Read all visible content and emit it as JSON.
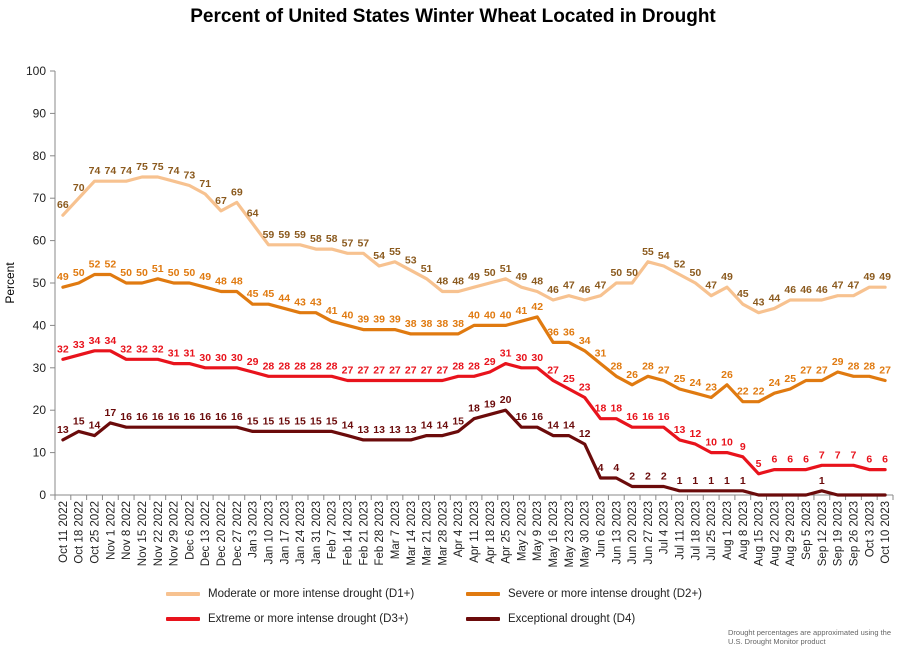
{
  "chart_data": {
    "type": "line",
    "title": "Percent of United States Winter Wheat Located in Drought",
    "xlabel": "",
    "ylabel": "Percent",
    "ylim": [
      0,
      100
    ],
    "yticks": [
      0,
      10,
      20,
      30,
      40,
      50,
      60,
      70,
      80,
      90,
      100
    ],
    "grid": false,
    "legend_position": "bottom",
    "categories": [
      "Oct 11 2022",
      "Oct 18 2022",
      "Oct 25 2022",
      "Nov 1 2022",
      "Nov 8 2022",
      "Nov 15 2022",
      "Nov 22 2022",
      "Nov 29 2022",
      "Dec 6 2022",
      "Dec 13 2022",
      "Dec 20 2022",
      "Dec 27 2022",
      "Jan 3 2023",
      "Jan 10 2023",
      "Jan 17 2023",
      "Jan 24 2023",
      "Jan 31 2023",
      "Feb 7 2023",
      "Feb 14 2023",
      "Feb 21 2023",
      "Feb 28 2023",
      "Mar 7 2023",
      "Mar 14 2023",
      "Mar 21 2023",
      "Mar 28 2023",
      "Apr 4 2023",
      "Apr 11 2023",
      "Apr 18 2023",
      "Apr 25 2023",
      "May 2 2023",
      "May 9 2023",
      "May 16 2023",
      "May 23 2023",
      "May 30 2023",
      "Jun 6 2023",
      "Jun 13 2023",
      "Jun 20 2023",
      "Jun 27 2023",
      "Jul 4 2023",
      "Jul 11 2023",
      "Jul 18 2023",
      "Jul 25 2023",
      "Aug 1 2023",
      "Aug 8 2023",
      "Aug 15 2023",
      "Aug 22 2023",
      "Aug 29 2023",
      "Sep 5 2023",
      "Sep 12 2023",
      "Sep 19 2023",
      "Sep 26 2023",
      "Oct 3 2023",
      "Oct 10 2023"
    ],
    "series": [
      {
        "name": "Moderate or more intense drought (D1+)",
        "color": "#f7c290",
        "label_color": "#8b5a1e",
        "values": [
          66,
          70,
          74,
          74,
          74,
          75,
          75,
          74,
          73,
          71,
          67,
          69,
          64,
          59,
          59,
          59,
          58,
          58,
          57,
          57,
          54,
          55,
          53,
          51,
          48,
          48,
          49,
          50,
          51,
          49,
          48,
          46,
          47,
          46,
          47,
          50,
          50,
          55,
          54,
          52,
          50,
          47,
          49,
          45,
          43,
          44,
          46,
          46,
          46,
          47,
          47,
          49,
          49
        ]
      },
      {
        "name": "Severe or more intense drought (D2+)",
        "color": "#e07a10",
        "label_color": "#e07a10",
        "values": [
          49,
          50,
          52,
          52,
          50,
          50,
          51,
          50,
          50,
          49,
          48,
          48,
          45,
          45,
          44,
          43,
          43,
          41,
          40,
          39,
          39,
          39,
          38,
          38,
          38,
          38,
          40,
          40,
          40,
          41,
          42,
          36,
          36,
          34,
          31,
          28,
          26,
          28,
          27,
          25,
          24,
          23,
          26,
          22,
          22,
          24,
          25,
          27,
          27,
          29,
          28,
          28,
          27
        ]
      },
      {
        "name": "Extreme or more intense drought (D3+)",
        "color": "#e8131c",
        "label_color": "#e8131c",
        "values": [
          32,
          33,
          34,
          34,
          32,
          32,
          32,
          31,
          31,
          30,
          30,
          30,
          29,
          28,
          28,
          28,
          28,
          28,
          27,
          27,
          27,
          27,
          27,
          27,
          27,
          28,
          28,
          29,
          31,
          30,
          30,
          27,
          25,
          23,
          18,
          18,
          16,
          16,
          16,
          13,
          12,
          10,
          10,
          9,
          5,
          6,
          6,
          6,
          7,
          7,
          7,
          6,
          6
        ]
      },
      {
        "name": "Exceptional drought (D4)",
        "color": "#6b0b0b",
        "label_color": "#6b0b0b",
        "values": [
          13,
          15,
          14,
          17,
          16,
          16,
          16,
          16,
          16,
          16,
          16,
          16,
          15,
          15,
          15,
          15,
          15,
          15,
          14,
          13,
          13,
          13,
          13,
          14,
          14,
          15,
          18,
          19,
          20,
          16,
          16,
          14,
          14,
          12,
          4,
          4,
          2,
          2,
          2,
          1,
          1,
          1,
          1,
          1,
          0,
          0,
          0,
          0,
          1,
          0,
          0,
          0,
          0
        ],
        "label_values": [
          13,
          15,
          14,
          17,
          16,
          16,
          16,
          16,
          16,
          16,
          16,
          16,
          15,
          15,
          15,
          15,
          15,
          15,
          14,
          13,
          13,
          13,
          13,
          14,
          14,
          15,
          18,
          19,
          20,
          16,
          16,
          14,
          14,
          12,
          4,
          4,
          2,
          2,
          2,
          1,
          1,
          1,
          1,
          1,
          null,
          null,
          null,
          null,
          1,
          null,
          null,
          null,
          null
        ]
      }
    ]
  },
  "footnote": "Drought percentages are approximated using the U.S. Drought Monitor product"
}
